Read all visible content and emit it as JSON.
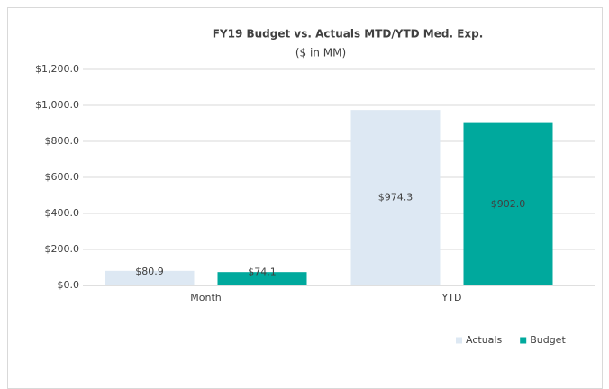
{
  "chart_data": {
    "type": "bar",
    "title": "FY19 Budget vs. Actuals MTD/YTD Med. Exp.",
    "subtitle": "($ in MM)",
    "categories": [
      "Month",
      "YTD"
    ],
    "series": [
      {
        "name": "Actuals",
        "color": "#dde8f3",
        "values": [
          80.9,
          974.3
        ],
        "value_labels": [
          "$80.9",
          "$974.3"
        ]
      },
      {
        "name": "Budget",
        "color": "#00a99d",
        "values": [
          74.1,
          902.0
        ],
        "value_labels": [
          "$74.1",
          "$902.0"
        ]
      }
    ],
    "ylim": [
      0,
      1200
    ],
    "yticks": [
      {
        "value": 0,
        "label": "$0.0"
      },
      {
        "value": 200,
        "label": "$200.0"
      },
      {
        "value": 400,
        "label": "$400.0"
      },
      {
        "value": 600,
        "label": "$600.0"
      },
      {
        "value": 800,
        "label": "$800.0"
      },
      {
        "value": 1000,
        "label": "$1,000.0"
      },
      {
        "value": 1200,
        "label": "$1,200.0"
      }
    ],
    "grid": true,
    "legend": "bottom-right"
  }
}
